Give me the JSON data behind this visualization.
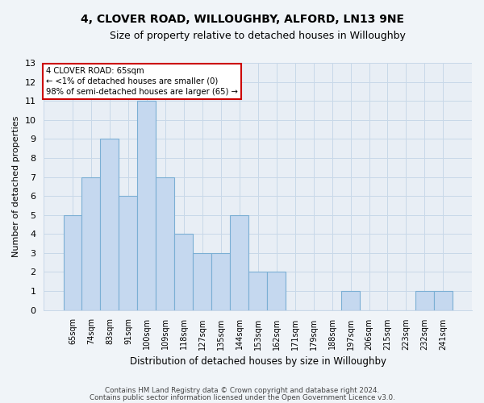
{
  "title": "4, CLOVER ROAD, WILLOUGHBY, ALFORD, LN13 9NE",
  "subtitle": "Size of property relative to detached houses in Willoughby",
  "xlabel": "Distribution of detached houses by size in Willoughby",
  "ylabel": "Number of detached properties",
  "categories": [
    "65sqm",
    "74sqm",
    "83sqm",
    "91sqm",
    "100sqm",
    "109sqm",
    "118sqm",
    "127sqm",
    "135sqm",
    "144sqm",
    "153sqm",
    "162sqm",
    "171sqm",
    "179sqm",
    "188sqm",
    "197sqm",
    "206sqm",
    "215sqm",
    "223sqm",
    "232sqm",
    "241sqm"
  ],
  "values": [
    5,
    7,
    9,
    6,
    11,
    7,
    4,
    3,
    3,
    5,
    2,
    2,
    0,
    0,
    0,
    1,
    0,
    0,
    0,
    1,
    1
  ],
  "bar_color": "#c5d8ef",
  "bar_edge_color": "#7bafd4",
  "grid_color": "#c8d8e8",
  "background_color": "#f0f4f8",
  "plot_bg_color": "#e8eef5",
  "ylim": [
    0,
    13
  ],
  "yticks": [
    0,
    1,
    2,
    3,
    4,
    5,
    6,
    7,
    8,
    9,
    10,
    11,
    12,
    13
  ],
  "annotation_text": "4 CLOVER ROAD: 65sqm\n← <1% of detached houses are smaller (0)\n98% of semi-detached houses are larger (65) →",
  "annotation_box_color": "#ffffff",
  "annotation_box_edge": "#cc0000",
  "footer1": "Contains HM Land Registry data © Crown copyright and database right 2024.",
  "footer2": "Contains public sector information licensed under the Open Government Licence v3.0."
}
